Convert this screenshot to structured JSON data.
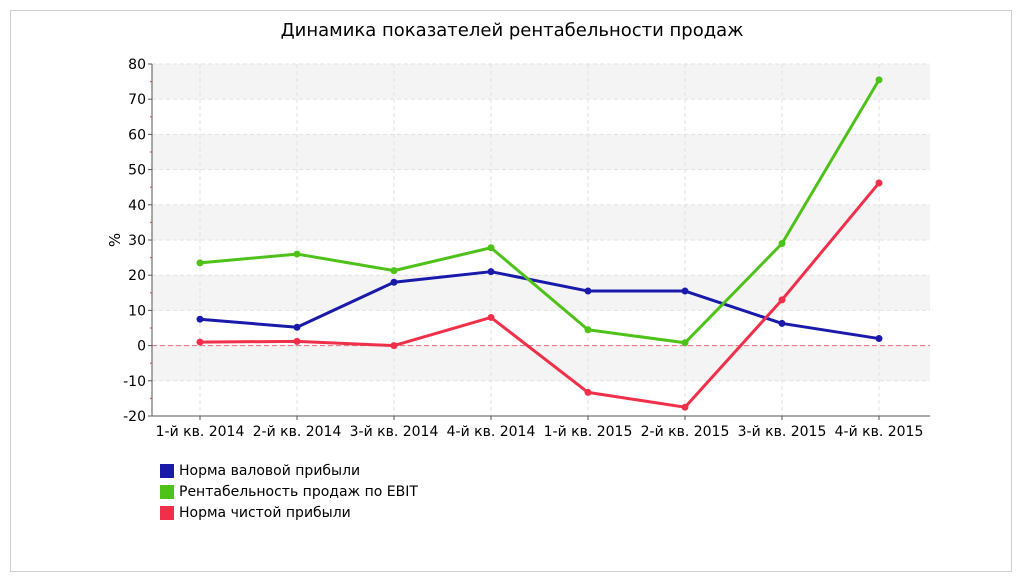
{
  "chart_data": {
    "type": "line",
    "title": "Динамика показателей рентабельности продаж",
    "ylabel": "%",
    "xlabel": "",
    "categories": [
      "1-й кв. 2014",
      "2-й кв. 2014",
      "3-й кв. 2014",
      "4-й кв. 2014",
      "1-й кв. 2015",
      "2-й кв. 2015",
      "3-й кв. 2015",
      "4-й кв. 2015"
    ],
    "ylim": [
      -20,
      80
    ],
    "yticks": [
      "-20",
      "-10",
      "0",
      "10",
      "20",
      "30",
      "40",
      "50",
      "60",
      "70",
      "80"
    ],
    "grid": true,
    "legend_position": "bottom-left",
    "series": [
      {
        "name": "Норма валовой прибыли",
        "color": "#1a1aaa",
        "values": [
          7.5,
          5.2,
          18,
          21,
          15.5,
          15.5,
          6.3,
          2
        ]
      },
      {
        "name": "Рентабельность продаж по EBIT",
        "color": "#4fc21a",
        "values": [
          23.5,
          26,
          21.3,
          27.8,
          4.5,
          0.8,
          29,
          75.5
        ]
      },
      {
        "name": "Норма чистой прибыли",
        "color": "#f0304a",
        "values": [
          1,
          1.2,
          0,
          8,
          -13.3,
          -17.5,
          13,
          46.2
        ]
      }
    ]
  }
}
